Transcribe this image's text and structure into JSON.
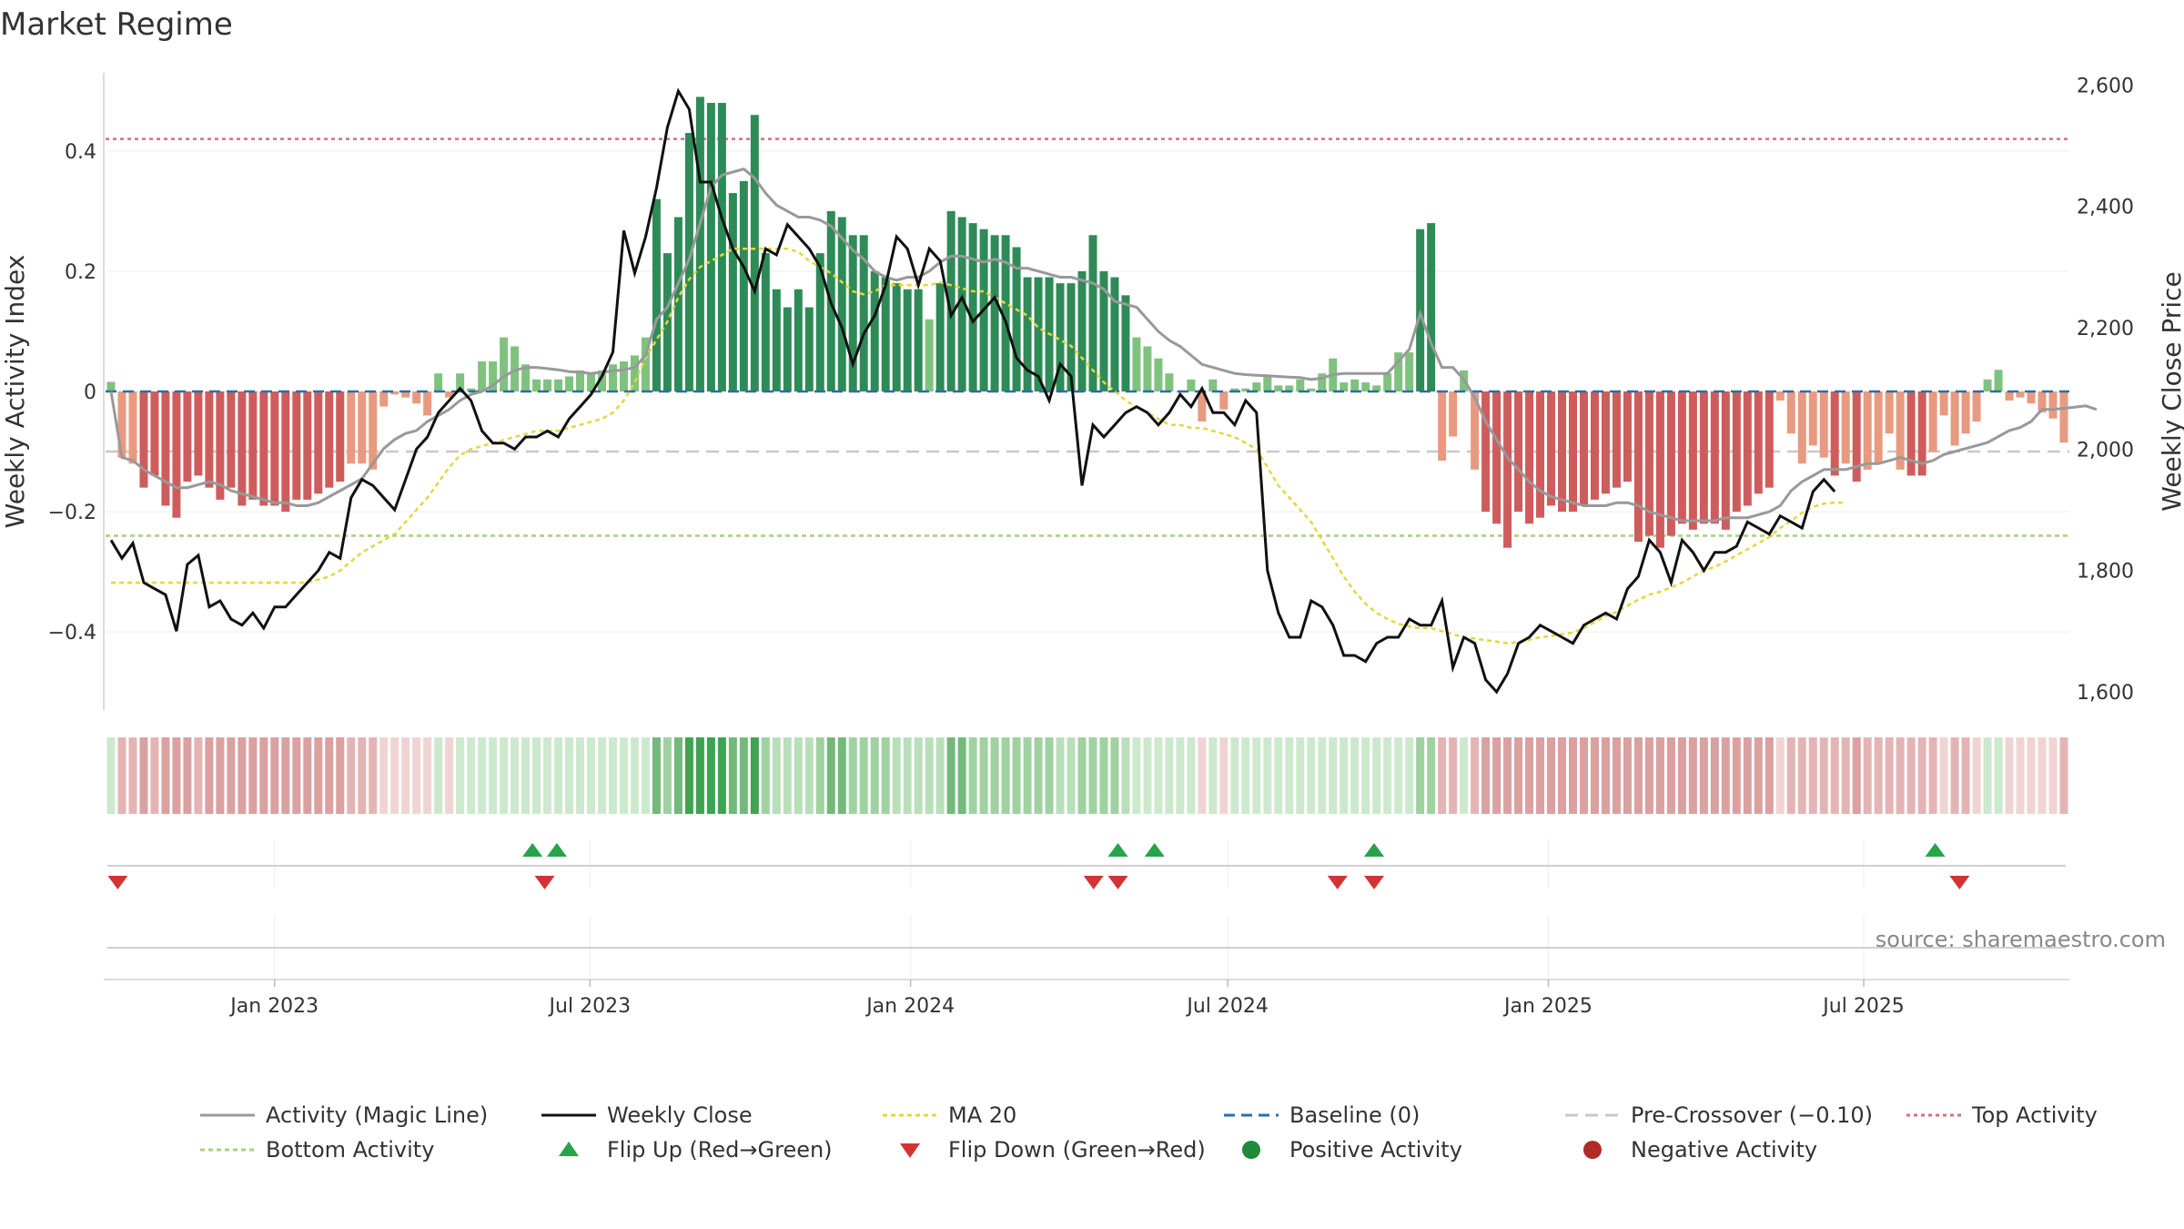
{
  "chart_data": {
    "type": "bar",
    "title": "Market Regime",
    "ylabel_left": "Weekly Activity Index",
    "ylabel_right": "Weekly Close Price",
    "source": "source: sharemaestro.com",
    "ylim_left": [
      -0.53,
      0.53
    ],
    "ylim_right": [
      1570,
      2620
    ],
    "yticks_left": [
      {
        "v": 0.4,
        "label": "0.4"
      },
      {
        "v": 0.2,
        "label": "0.2"
      },
      {
        "v": 0,
        "label": "0"
      },
      {
        "v": -0.2,
        "label": "−0.2"
      },
      {
        "v": -0.4,
        "label": "−0.4"
      }
    ],
    "yticks_right": [
      {
        "v": 2600,
        "label": "2,600"
      },
      {
        "v": 2400,
        "label": "2,400"
      },
      {
        "v": 2200,
        "label": "2,200"
      },
      {
        "v": 2000,
        "label": "2,000"
      },
      {
        "v": 1800,
        "label": "1,800"
      },
      {
        "v": 1600,
        "label": "1,600"
      }
    ],
    "x_start": "2022-09-26",
    "x_end": "2025-10-27",
    "xticks": [
      {
        "date": "2023-01-01",
        "label": "Jan 2023"
      },
      {
        "date": "2023-07-01",
        "label": "Jul 2023"
      },
      {
        "date": "2024-01-01",
        "label": "Jan 2024"
      },
      {
        "date": "2024-07-01",
        "label": "Jul 2024"
      },
      {
        "date": "2025-01-01",
        "label": "Jan 2025"
      },
      {
        "date": "2025-07-01",
        "label": "Jul 2025"
      }
    ],
    "top_activity": 0.42,
    "bottom_activity": -0.24,
    "pre_crossover": -0.1,
    "baseline": 0,
    "activity": [
      0.016,
      -0.11,
      -0.12,
      -0.16,
      -0.14,
      -0.19,
      -0.21,
      -0.15,
      -0.14,
      -0.16,
      -0.18,
      -0.16,
      -0.19,
      -0.18,
      -0.19,
      -0.19,
      -0.2,
      -0.18,
      -0.18,
      -0.17,
      -0.16,
      -0.15,
      -0.12,
      -0.12,
      -0.13,
      -0.025,
      -0.005,
      -0.01,
      -0.02,
      -0.04,
      0.03,
      -0.01,
      0.03,
      0.005,
      0.05,
      0.05,
      0.09,
      0.075,
      0.045,
      0.02,
      0.02,
      0.02,
      0.025,
      0.035,
      0.03,
      0.035,
      0.045,
      0.05,
      0.06,
      0.09,
      0.32,
      0.23,
      0.29,
      0.43,
      0.49,
      0.48,
      0.48,
      0.33,
      0.35,
      0.46,
      0.23,
      0.17,
      0.14,
      0.17,
      0.14,
      0.23,
      0.3,
      0.29,
      0.26,
      0.26,
      0.2,
      0.19,
      0.18,
      0.17,
      0.17,
      0.12,
      0.18,
      0.3,
      0.29,
      0.28,
      0.27,
      0.26,
      0.26,
      0.24,
      0.19,
      0.19,
      0.19,
      0.18,
      0.18,
      0.2,
      0.26,
      0.2,
      0.19,
      0.16,
      0.09,
      0.075,
      0.055,
      0.03,
      0.0,
      0.02,
      -0.05,
      0.02,
      -0.03,
      0.005,
      0.005,
      0.015,
      0.025,
      0.01,
      0.01,
      0.02,
      0.005,
      0.03,
      0.055,
      0.015,
      0.02,
      0.015,
      0.01,
      0.03,
      0.065,
      0.065,
      0.27,
      0.28,
      -0.115,
      -0.075,
      0.035,
      -0.13,
      -0.2,
      -0.22,
      -0.26,
      -0.2,
      -0.22,
      -0.21,
      -0.19,
      -0.2,
      -0.2,
      -0.19,
      -0.18,
      -0.17,
      -0.16,
      -0.15,
      -0.25,
      -0.24,
      -0.26,
      -0.24,
      -0.22,
      -0.23,
      -0.22,
      -0.22,
      -0.23,
      -0.2,
      -0.19,
      -0.17,
      -0.16,
      -0.015,
      -0.07,
      -0.12,
      -0.09,
      -0.11,
      -0.14,
      -0.12,
      -0.15,
      -0.13,
      -0.12,
      -0.07,
      -0.13,
      -0.14,
      -0.14,
      -0.1,
      -0.04,
      -0.09,
      -0.07,
      -0.05,
      0.02,
      0.036,
      -0.015,
      -0.01,
      -0.02,
      -0.035,
      -0.045,
      -0.085
    ],
    "magic_line": [
      0.0,
      -0.11,
      -0.115,
      -0.13,
      -0.14,
      -0.15,
      -0.16,
      -0.16,
      -0.155,
      -0.15,
      -0.155,
      -0.165,
      -0.17,
      -0.175,
      -0.18,
      -0.185,
      -0.185,
      -0.19,
      -0.19,
      -0.185,
      -0.175,
      -0.165,
      -0.155,
      -0.145,
      -0.12,
      -0.095,
      -0.08,
      -0.07,
      -0.065,
      -0.05,
      -0.04,
      -0.03,
      -0.015,
      -0.005,
      0.0,
      0.01,
      0.025,
      0.035,
      0.04,
      0.04,
      0.038,
      0.036,
      0.033,
      0.032,
      0.03,
      0.032,
      0.034,
      0.036,
      0.04,
      0.06,
      0.12,
      0.14,
      0.18,
      0.22,
      0.28,
      0.34,
      0.36,
      0.365,
      0.37,
      0.355,
      0.33,
      0.31,
      0.3,
      0.29,
      0.29,
      0.285,
      0.275,
      0.255,
      0.235,
      0.22,
      0.2,
      0.19,
      0.185,
      0.19,
      0.19,
      0.2,
      0.215,
      0.225,
      0.225,
      0.22,
      0.215,
      0.22,
      0.215,
      0.205,
      0.205,
      0.2,
      0.195,
      0.19,
      0.19,
      0.185,
      0.18,
      0.17,
      0.15,
      0.145,
      0.14,
      0.12,
      0.1,
      0.085,
      0.075,
      0.06,
      0.045,
      0.04,
      0.035,
      0.03,
      0.028,
      0.027,
      0.026,
      0.025,
      0.024,
      0.023,
      0.02,
      0.022,
      0.028,
      0.03,
      0.03,
      0.03,
      0.03,
      0.03,
      0.05,
      0.07,
      0.13,
      0.08,
      0.04,
      0.04,
      0.02,
      -0.01,
      -0.05,
      -0.08,
      -0.11,
      -0.13,
      -0.15,
      -0.165,
      -0.175,
      -0.18,
      -0.185,
      -0.19,
      -0.19,
      -0.19,
      -0.185,
      -0.185,
      -0.19,
      -0.2,
      -0.205,
      -0.21,
      -0.215,
      -0.215,
      -0.215,
      -0.215,
      -0.21,
      -0.21,
      -0.21,
      -0.205,
      -0.2,
      -0.19,
      -0.165,
      -0.15,
      -0.14,
      -0.13,
      -0.13,
      -0.13,
      -0.125,
      -0.12,
      -0.12,
      -0.115,
      -0.11,
      -0.115,
      -0.12,
      -0.115,
      -0.105,
      -0.1,
      -0.095,
      -0.09,
      -0.085,
      -0.075,
      -0.065,
      -0.06,
      -0.05,
      -0.03,
      -0.03,
      -0.028,
      -0.026,
      -0.024,
      -0.03
    ],
    "close": [
      1850,
      1820,
      1845,
      1780,
      1770,
      1760,
      1700,
      1810,
      1825,
      1740,
      1750,
      1720,
      1710,
      1730,
      1705,
      1740,
      1740,
      1760,
      1780,
      1800,
      1830,
      1820,
      1920,
      1950,
      1940,
      1920,
      1900,
      1950,
      2000,
      2020,
      2060,
      2080,
      2100,
      2080,
      2030,
      2010,
      2010,
      2000,
      2020,
      2020,
      2030,
      2020,
      2050,
      2070,
      2090,
      2120,
      2160,
      2360,
      2290,
      2350,
      2430,
      2530,
      2590,
      2560,
      2440,
      2440,
      2380,
      2330,
      2300,
      2260,
      2330,
      2320,
      2370,
      2350,
      2330,
      2300,
      2240,
      2200,
      2140,
      2190,
      2220,
      2270,
      2350,
      2330,
      2270,
      2330,
      2310,
      2220,
      2250,
      2210,
      2230,
      2250,
      2210,
      2150,
      2130,
      2120,
      2080,
      2140,
      2120,
      1940,
      2040,
      2020,
      2040,
      2060,
      2070,
      2060,
      2040,
      2060,
      2090,
      2070,
      2100,
      2060,
      2060,
      2040,
      2080,
      2060,
      1800,
      1730,
      1690,
      1690,
      1750,
      1740,
      1710,
      1660,
      1660,
      1650,
      1680,
      1690,
      1690,
      1720,
      1710,
      1710,
      1750,
      1640,
      1690,
      1680,
      1620,
      1600,
      1630,
      1680,
      1690,
      1710,
      1700,
      1690,
      1680,
      1710,
      1720,
      1730,
      1720,
      1770,
      1790,
      1850,
      1830,
      1780,
      1850,
      1830,
      1800,
      1830,
      1830,
      1840,
      1880,
      1870,
      1860,
      1890,
      1880,
      1870,
      1930,
      1950,
      1930
    ],
    "ma20": [
      1780,
      1780,
      1780,
      1780,
      1780,
      1780,
      1780,
      1780,
      1780,
      1780,
      1780,
      1780,
      1780,
      1780,
      1780,
      1780,
      1780,
      1780,
      1780,
      1785,
      1790,
      1800,
      1815,
      1830,
      1840,
      1850,
      1860,
      1880,
      1900,
      1920,
      1945,
      1970,
      1990,
      2000,
      2005,
      2010,
      2015,
      2020,
      2025,
      2030,
      2030,
      2030,
      2035,
      2040,
      2045,
      2050,
      2060,
      2080,
      2110,
      2150,
      2180,
      2210,
      2250,
      2280,
      2300,
      2310,
      2320,
      2330,
      2330,
      2330,
      2330,
      2330,
      2330,
      2325,
      2310,
      2300,
      2290,
      2275,
      2260,
      2255,
      2260,
      2270,
      2270,
      2270,
      2270,
      2270,
      2275,
      2270,
      2265,
      2260,
      2260,
      2250,
      2240,
      2230,
      2220,
      2200,
      2190,
      2180,
      2170,
      2150,
      2130,
      2110,
      2095,
      2080,
      2070,
      2060,
      2050,
      2040,
      2040,
      2035,
      2035,
      2030,
      2025,
      2020,
      2010,
      2000,
      1970,
      1940,
      1920,
      1900,
      1880,
      1850,
      1820,
      1790,
      1765,
      1745,
      1730,
      1720,
      1712,
      1708,
      1705,
      1705,
      1700,
      1695,
      1690,
      1688,
      1685,
      1683,
      1680,
      1682,
      1686,
      1690,
      1692,
      1695,
      1698,
      1705,
      1715,
      1725,
      1732,
      1742,
      1752,
      1760,
      1765,
      1772,
      1780,
      1790,
      1800,
      1806,
      1815,
      1825,
      1835,
      1845,
      1855,
      1870,
      1882,
      1895,
      1905,
      1910,
      1912,
      1912
    ],
    "flip_up_dates": [
      "2023-05-29",
      "2023-06-12",
      "2024-04-29",
      "2024-05-20",
      "2024-09-23",
      "2025-08-11"
    ],
    "flip_down_dates": [
      "2022-10-03",
      "2023-06-05",
      "2024-04-15",
      "2024-04-29",
      "2024-09-02",
      "2024-09-23",
      "2025-08-25"
    ],
    "legend": [
      {
        "label": "Activity (Magic Line)",
        "kind": "line",
        "color": "#999999",
        "dash": ""
      },
      {
        "label": "Weekly Close",
        "kind": "line",
        "color": "#111111",
        "dash": ""
      },
      {
        "label": "MA 20",
        "kind": "line",
        "color": "#e3d83a",
        "dash": "5,4"
      },
      {
        "label": "Baseline (0)",
        "kind": "line",
        "color": "#2b6ea8",
        "dash": "12,7"
      },
      {
        "label": "Pre-Crossover (−0.10)",
        "kind": "line",
        "color": "#c8c8c8",
        "dash": "14,8"
      },
      {
        "label": "Top Activity",
        "kind": "line",
        "color": "#d4707c",
        "dash": "4,4"
      },
      {
        "label": "Bottom Activity",
        "kind": "line",
        "color": "#a6d277",
        "dash": "5,4"
      },
      {
        "label": "Flip Up (Red→Green)",
        "kind": "tri-up",
        "color": "#27a34a",
        "dash": ""
      },
      {
        "label": "Flip Down (Green→Red)",
        "kind": "tri-down",
        "color": "#d33333",
        "dash": ""
      },
      {
        "label": "Positive Activity",
        "kind": "dot",
        "color": "#1f8a3c",
        "dash": ""
      },
      {
        "label": "Negative Activity",
        "kind": "dot",
        "color": "#b02a2a",
        "dash": ""
      }
    ],
    "colors": {
      "pos_strong": "#2e8b57",
      "pos_weak": "#7fc27f",
      "neg_strong": "#cf5c5c",
      "neg_weak": "#e89a80",
      "magic_line": "#999999",
      "close": "#111111",
      "ma20": "#e3d83a"
    }
  }
}
